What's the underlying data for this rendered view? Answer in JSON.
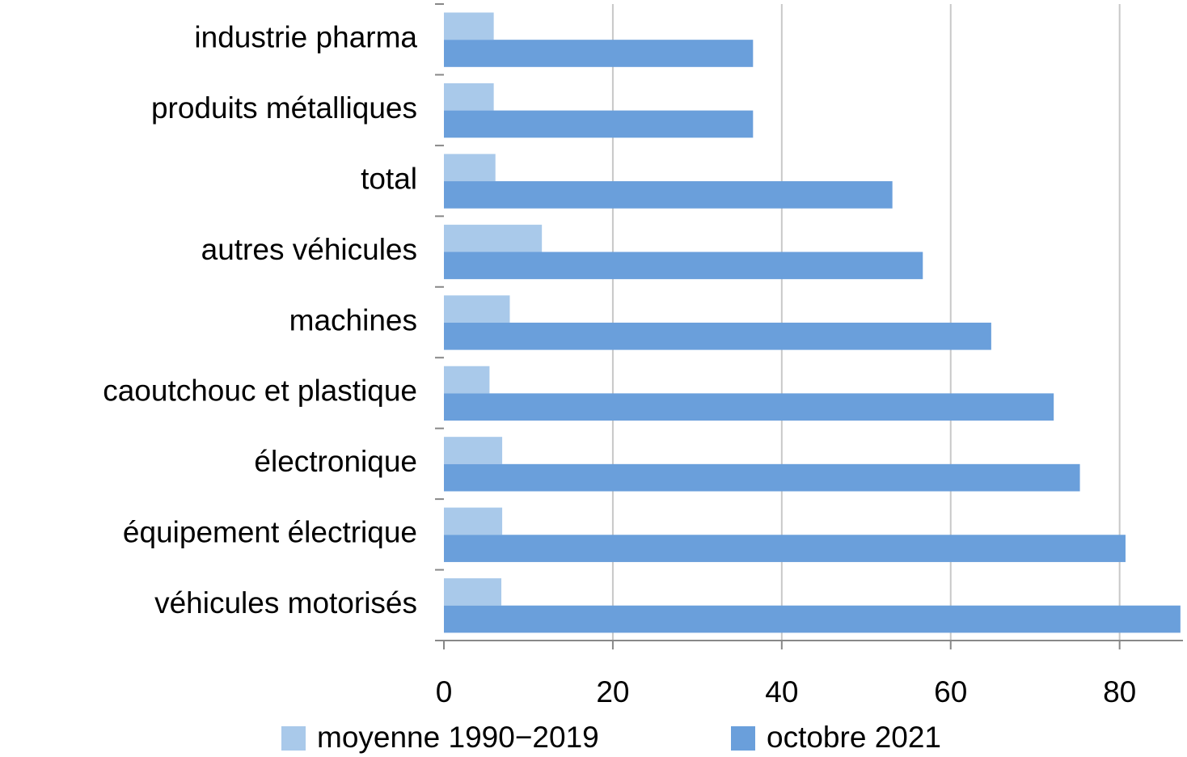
{
  "chart_data": {
    "type": "hbar",
    "categories": [
      "industrie pharma",
      "produits métalliques",
      "total",
      "autres véhicules",
      "machines",
      "caoutchouc et plastique",
      "électronique",
      "équipement électrique",
      "véhicules motorisés"
    ],
    "series": [
      {
        "name": "moyenne 1990−2019",
        "color": "#a9c9ea",
        "values": [
          5.9,
          5.9,
          6.1,
          11.6,
          7.8,
          5.4,
          6.9,
          6.9,
          6.8
        ]
      },
      {
        "name": "octobre 2021",
        "color": "#6a9fdb",
        "values": [
          36.6,
          36.6,
          53.1,
          56.7,
          64.8,
          72.2,
          75.3,
          80.7,
          87.2
        ]
      }
    ],
    "xlim": [
      0,
      87.5
    ],
    "xticks": [
      0,
      20,
      40,
      60,
      80
    ],
    "grid": true,
    "legend": "bottom"
  }
}
